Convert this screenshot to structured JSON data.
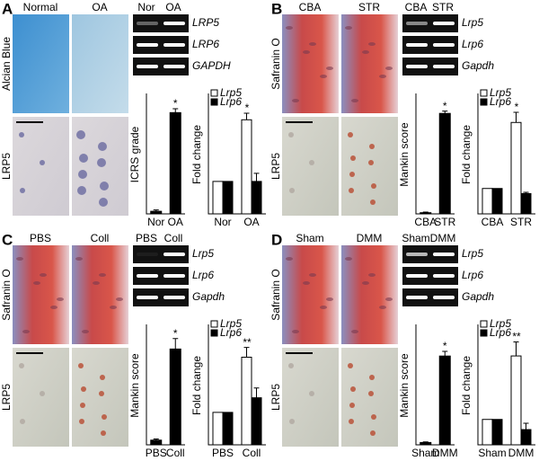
{
  "panels": [
    {
      "label": "A",
      "image_columns": [
        "Normal",
        "OA"
      ],
      "image_rows": [
        "Alcian Blue",
        "LRP5"
      ],
      "gel_columns": [
        "Nor",
        "OA"
      ],
      "gel_rows": [
        "LRP5",
        "LRP6",
        "GAPDH"
      ]
    },
    {
      "label": "B",
      "image_columns": [
        "CBA",
        "STR"
      ],
      "image_rows": [
        "Safranin O",
        "LRP5"
      ],
      "gel_columns": [
        "CBA",
        "STR"
      ],
      "gel_rows": [
        "Lrp5",
        "Lrp6",
        "Gapdh"
      ]
    },
    {
      "label": "C",
      "image_columns": [
        "PBS",
        "Coll"
      ],
      "image_rows": [
        "Safranin O",
        "LRP5"
      ],
      "gel_columns": [
        "PBS",
        "Coll"
      ],
      "gel_rows": [
        "Lrp5",
        "Lrp6",
        "Gapdh"
      ]
    },
    {
      "label": "D",
      "image_columns": [
        "Sham",
        "DMM"
      ],
      "image_rows": [
        "Safranin O",
        "LRP5"
      ],
      "gel_columns": [
        "Sham",
        "DMM"
      ],
      "gel_rows": [
        "Lrp5",
        "Lrp6",
        "Gapdh"
      ]
    }
  ],
  "chart_data": [
    {
      "type": "bar",
      "ylabel": "ICRS grade",
      "categories": [
        "Nor",
        "OA"
      ],
      "values": [
        0.1,
        3.9
      ],
      "errors": [
        0.05,
        0.15
      ],
      "color": "#000000",
      "ylim": [
        0,
        4.5
      ],
      "annotation": "*"
    },
    {
      "type": "grouped_bar",
      "ylabel": "Fold change",
      "categories": [
        "Nor",
        "OA"
      ],
      "series": [
        {
          "name": "Lrp5",
          "color": "#ffffff",
          "values": [
            1,
            2.9
          ],
          "errors": [
            0,
            0.2
          ]
        },
        {
          "name": "Lrp6",
          "color": "#000000",
          "values": [
            1,
            1.0
          ],
          "errors": [
            0,
            0.25
          ]
        }
      ],
      "ylim": [
        0,
        3.6
      ],
      "annotation": "*"
    },
    {
      "type": "bar",
      "ylabel": "Mankin score",
      "categories": [
        "CBA",
        "STR"
      ],
      "values": [
        0.1,
        8.6
      ],
      "errors": [
        0.05,
        0.2
      ],
      "color": "#000000",
      "ylim": [
        0,
        10
      ],
      "annotation": "*"
    },
    {
      "type": "grouped_bar",
      "ylabel": "Fold change",
      "categories": [
        "CBA",
        "STR"
      ],
      "series": [
        {
          "name": "Lrp5",
          "color": "#ffffff",
          "values": [
            1,
            3.6
          ],
          "errors": [
            0,
            0.4
          ]
        },
        {
          "name": "Lrp6",
          "color": "#000000",
          "values": [
            1,
            0.8
          ],
          "errors": [
            0,
            0.05
          ]
        }
      ],
      "ylim": [
        0,
        4.6
      ],
      "annotation": "*"
    },
    {
      "type": "bar",
      "ylabel": "Mankin score",
      "categories": [
        "PBS",
        "Coll"
      ],
      "values": [
        0.4,
        8.2
      ],
      "errors": [
        0.1,
        0.9
      ],
      "color": "#000000",
      "ylim": [
        0,
        10
      ],
      "annotation": "*"
    },
    {
      "type": "grouped_bar",
      "ylabel": "Fold change",
      "categories": [
        "PBS",
        "Coll"
      ],
      "series": [
        {
          "name": "Lrp5",
          "color": "#ffffff",
          "values": [
            1,
            2.7
          ],
          "errors": [
            0,
            0.3
          ]
        },
        {
          "name": "Lrp6",
          "color": "#000000",
          "values": [
            1,
            1.45
          ],
          "errors": [
            0,
            0.3
          ]
        }
      ],
      "ylim": [
        0,
        3.6
      ],
      "annotation": "**"
    },
    {
      "type": "bar",
      "ylabel": "Mankin score",
      "categories": [
        "Sham",
        "DMM"
      ],
      "values": [
        0.2,
        7.6
      ],
      "errors": [
        0.05,
        0.4
      ],
      "color": "#000000",
      "ylim": [
        0,
        10
      ],
      "annotation": "*"
    },
    {
      "type": "grouped_bar",
      "ylabel": "Fold change",
      "categories": [
        "Sham",
        "DMM"
      ],
      "series": [
        {
          "name": "Lrp5",
          "color": "#ffffff",
          "values": [
            1,
            3.5
          ],
          "errors": [
            0,
            0.55
          ]
        },
        {
          "name": "Lrp6",
          "color": "#000000",
          "values": [
            1,
            0.6
          ],
          "errors": [
            0,
            0.25
          ]
        }
      ],
      "ylim": [
        0,
        4.6
      ],
      "annotation": "**"
    }
  ]
}
